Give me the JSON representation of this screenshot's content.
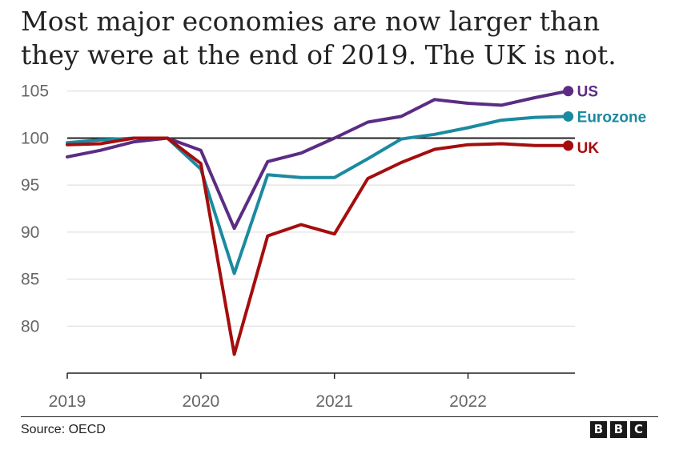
{
  "title_lines": [
    "Most major economies are now larger than",
    "they were at the end of 2019. The UK is not."
  ],
  "source": "Source: OECD",
  "logo": [
    "B",
    "B",
    "C"
  ],
  "colors": {
    "US": "#5b2c83",
    "Eurozone": "#1b8aa0",
    "UK": "#a50d0d",
    "baseline": "#222222",
    "grid": "#d9d9d9",
    "tick_text": "#666666"
  },
  "chart_data": {
    "type": "line",
    "title": "Most major economies are now larger than they were at the end of 2019. The UK is not.",
    "xlabel": "",
    "ylabel": "",
    "x": [
      2019.0,
      2019.25,
      2019.5,
      2019.75,
      2020.0,
      2020.25,
      2020.5,
      2020.75,
      2021.0,
      2021.25,
      2021.5,
      2021.75,
      2022.0,
      2022.25,
      2022.5,
      2022.75
    ],
    "xlim": [
      2019.0,
      2022.8
    ],
    "ylim": [
      75,
      106
    ],
    "x_ticks": [
      2019,
      2020,
      2021,
      2022
    ],
    "x_tick_labels": [
      "2019",
      "2020",
      "2021",
      "2022"
    ],
    "y_ticks": [
      80,
      85,
      90,
      95,
      100,
      105
    ],
    "y_tick_labels": [
      "80",
      "85",
      "90",
      "95",
      "100",
      "105"
    ],
    "baseline": 100,
    "series": [
      {
        "name": "US",
        "label": "US",
        "values": [
          98.0,
          98.7,
          99.6,
          100.0,
          98.7,
          90.4,
          97.5,
          98.4,
          100.0,
          101.7,
          102.3,
          104.1,
          103.7,
          103.5,
          104.3,
          105.0
        ]
      },
      {
        "name": "Eurozone",
        "label": "Eurozone",
        "values": [
          99.5,
          99.8,
          100.0,
          100.0,
          96.7,
          85.6,
          96.1,
          95.8,
          95.8,
          97.8,
          99.9,
          100.4,
          101.1,
          101.9,
          102.2,
          102.3
        ]
      },
      {
        "name": "UK",
        "label": "UK",
        "values": [
          99.3,
          99.4,
          100.0,
          100.0,
          97.3,
          77.0,
          89.6,
          90.8,
          89.8,
          95.7,
          97.4,
          98.8,
          99.3,
          99.4,
          99.2,
          99.2
        ]
      }
    ]
  }
}
